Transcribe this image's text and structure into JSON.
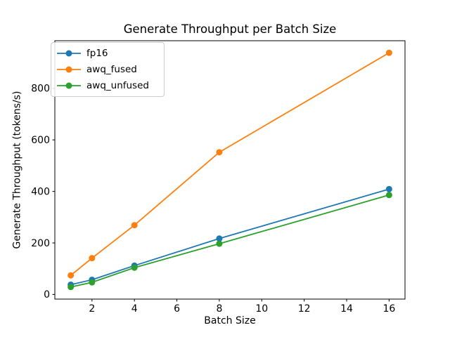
{
  "chart_data": {
    "type": "line",
    "title": "Generate Throughput per Batch Size",
    "xlabel": "Batch Size",
    "ylabel": "Generate Throughput (tokens/s)",
    "x": [
      1,
      2,
      4,
      8,
      16
    ],
    "series": [
      {
        "name": "fp16",
        "color": "#1f77b4",
        "values": [
          38,
          57,
          112,
          217,
          409
        ]
      },
      {
        "name": "awq_fused",
        "color": "#ff7f0e",
        "values": [
          74,
          141,
          269,
          552,
          938
        ]
      },
      {
        "name": "awq_unfused",
        "color": "#2ca02c",
        "values": [
          29,
          47,
          104,
          197,
          386
        ]
      }
    ],
    "xticks": [
      2,
      4,
      6,
      8,
      10,
      12,
      14,
      16
    ],
    "yticks": [
      0,
      200,
      400,
      600,
      800
    ],
    "xlim": [
      0.25,
      16.75
    ],
    "ylim": [
      -18,
      985
    ],
    "grid": false,
    "marker": "circle",
    "legend_position": "upper left",
    "spine_color": "#000000",
    "background_color": "#ffffff"
  }
}
